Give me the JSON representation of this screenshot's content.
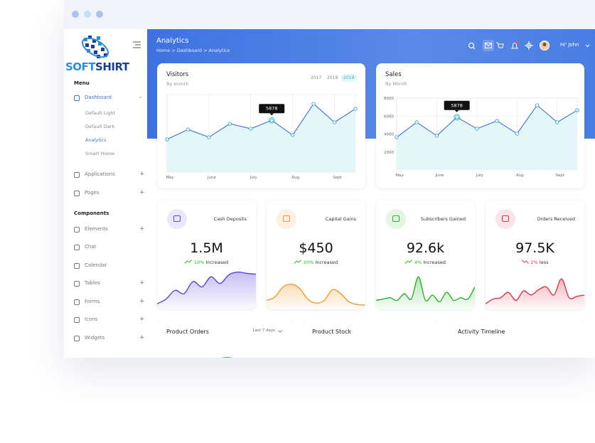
{
  "sidebar": {
    "logo": {
      "part1": "SOFT",
      "part2": "SHIRT"
    },
    "sections": [
      {
        "title": "Menu",
        "items": [
          {
            "label": "Dashboard",
            "toggle": "-",
            "active": true,
            "children": [
              {
                "label": "Default Light"
              },
              {
                "label": "Default Dark"
              },
              {
                "label": "Analytics",
                "active": true
              },
              {
                "label": "Smart Home"
              }
            ]
          },
          {
            "label": "Applications",
            "toggle": "+"
          },
          {
            "label": "Pages",
            "toggle": "+"
          }
        ]
      },
      {
        "title": "Components",
        "items": [
          {
            "label": "Elements",
            "toggle": "+"
          },
          {
            "label": "Chat"
          },
          {
            "label": "Calendar"
          },
          {
            "label": "Tables",
            "toggle": "+"
          },
          {
            "label": "Forms",
            "toggle": "+"
          },
          {
            "label": "Icons",
            "toggle": "+"
          },
          {
            "label": "Widgets",
            "toggle": "+"
          }
        ]
      }
    ]
  },
  "header": {
    "title": "Analytics",
    "breadcrumb": "Home > Dashboard > Analytics",
    "user": "Hi' John"
  },
  "charts": [
    {
      "type": "line",
      "title": "Visitors",
      "subtitle": "By month",
      "years": [
        "2017",
        "2018",
        "2019"
      ],
      "active_year": "2019",
      "categories": [
        "May",
        null,
        "June",
        null,
        "July",
        null,
        "Aug",
        null,
        "Sept",
        null
      ],
      "values": [
        3710,
        4840,
        3960,
        5490,
        4920,
        5878,
        4200,
        7750,
        5650,
        7190
      ],
      "ylim": [
        0,
        8800
      ],
      "tooltip": 5878,
      "color": "#3c6fd8",
      "fill": "#e5f6f9",
      "grid": true
    },
    {
      "type": "line",
      "title": "Sales",
      "subtitle": "By Month",
      "categories": [
        "May",
        null,
        "June",
        null,
        "July",
        null,
        "Aug",
        null,
        "Sept",
        null
      ],
      "values": [
        3640,
        5310,
        3800,
        5878,
        4590,
        5470,
        4040,
        7210,
        5310,
        6650
      ],
      "ylim": [
        0,
        8000
      ],
      "yticks": [
        2000,
        4000,
        6000,
        8000
      ],
      "tooltip": 5878,
      "color": "#3c6fd8",
      "fill": "#e5f6f9",
      "grid": true
    }
  ],
  "stats": [
    {
      "title": "Cash Deposits",
      "value": "1.5M",
      "change": "10% Increased",
      "trend": "up",
      "color": "#5b48d9",
      "icon_bg": "#e9e7fb",
      "sparkline": [
        5,
        12,
        25,
        20,
        38,
        30,
        45,
        35,
        48,
        52,
        50,
        49
      ],
      "ylim": [
        0,
        60
      ]
    },
    {
      "title": "Capital Gains",
      "value": "$450",
      "change": "20% Increased",
      "trend": "up",
      "color": "#f29a2e",
      "icon_bg": "#fdf0e1",
      "sparkline": [
        10,
        15,
        30,
        34,
        28,
        12,
        6,
        10,
        26,
        20,
        8,
        4,
        3
      ],
      "ylim": [
        0,
        60
      ]
    },
    {
      "title": "Subscribers Gained",
      "value": "92.6k",
      "change": "4% Increased",
      "trend": "up",
      "color": "#2bb12b",
      "icon_bg": "#e3f5e3",
      "sparkline": [
        10,
        12,
        14,
        10,
        20,
        12,
        45,
        10,
        18,
        8,
        22,
        10,
        14,
        12,
        30
      ],
      "ylim": [
        0,
        60
      ]
    },
    {
      "title": "Orders Received",
      "value": "97.5K",
      "change": "2% less",
      "trend": "down",
      "color": "#de3449",
      "icon_bg": "#fbe4e7",
      "sparkline": [
        5,
        12,
        14,
        22,
        10,
        24,
        18,
        26,
        30,
        18,
        42,
        14,
        16,
        18
      ],
      "ylim": [
        0,
        60
      ]
    }
  ],
  "bottom": [
    {
      "title": "Product Orders",
      "filter": "Last 7 days"
    },
    {
      "title": "Product Stock"
    },
    {
      "title": "Activity Timeline"
    }
  ]
}
